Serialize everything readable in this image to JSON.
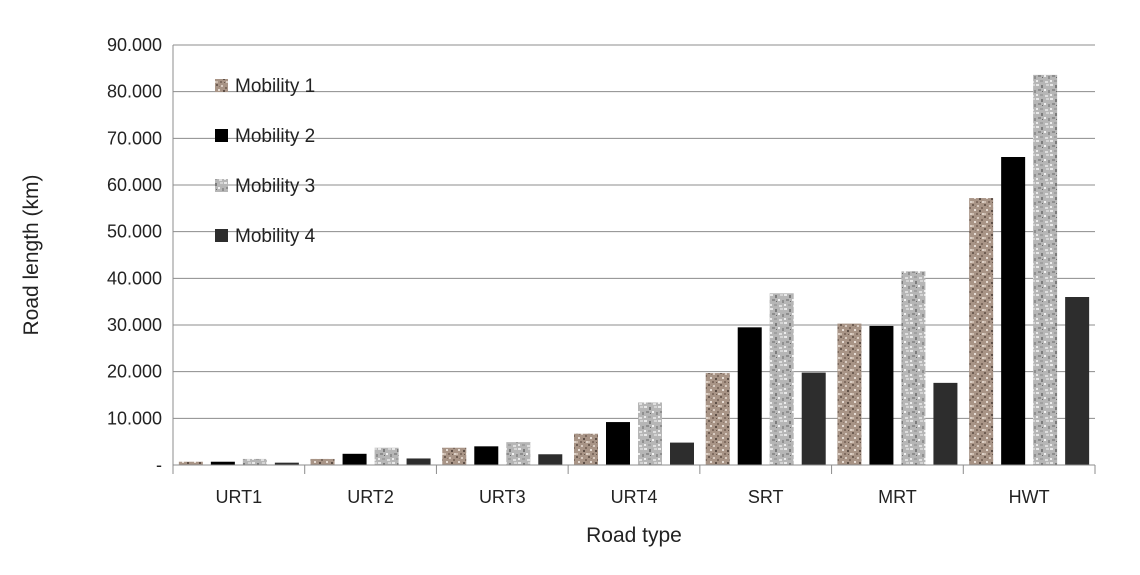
{
  "chart_data": {
    "type": "bar",
    "title": "",
    "xlabel": "Road type",
    "ylabel": "Road length (km)",
    "ylim": [
      0,
      90000
    ],
    "yticks": [
      0,
      10000,
      20000,
      30000,
      40000,
      50000,
      60000,
      70000,
      80000,
      90000
    ],
    "ytick_labels": [
      "-",
      "10.000",
      "20.000",
      "30.000",
      "40.000",
      "50.000",
      "60.000",
      "70.000",
      "80.000",
      "90.000"
    ],
    "grid": "horizontal",
    "legend_position": "top-left",
    "categories": [
      "URT1",
      "URT2",
      "URT3",
      "URT4",
      "SRT",
      "MRT",
      "HWT"
    ],
    "series": [
      {
        "name": "Mobility 1",
        "color": "#a8968a",
        "pattern": "granite-brown",
        "values": [
          700,
          1300,
          3700,
          6700,
          19700,
          30300,
          57200
        ]
      },
      {
        "name": "Mobility 2",
        "color": "#000000",
        "pattern": "solid",
        "values": [
          700,
          2400,
          4000,
          9200,
          29500,
          29800,
          66000
        ]
      },
      {
        "name": "Mobility 3",
        "color": "#b4b4b4",
        "pattern": "granite-gray",
        "values": [
          1300,
          3700,
          4900,
          13400,
          36800,
          41500,
          83600
        ]
      },
      {
        "name": "Mobility 4",
        "color": "#2d2d2d",
        "pattern": "solid",
        "values": [
          500,
          1400,
          2300,
          4800,
          19800,
          17600,
          36000
        ]
      }
    ]
  }
}
